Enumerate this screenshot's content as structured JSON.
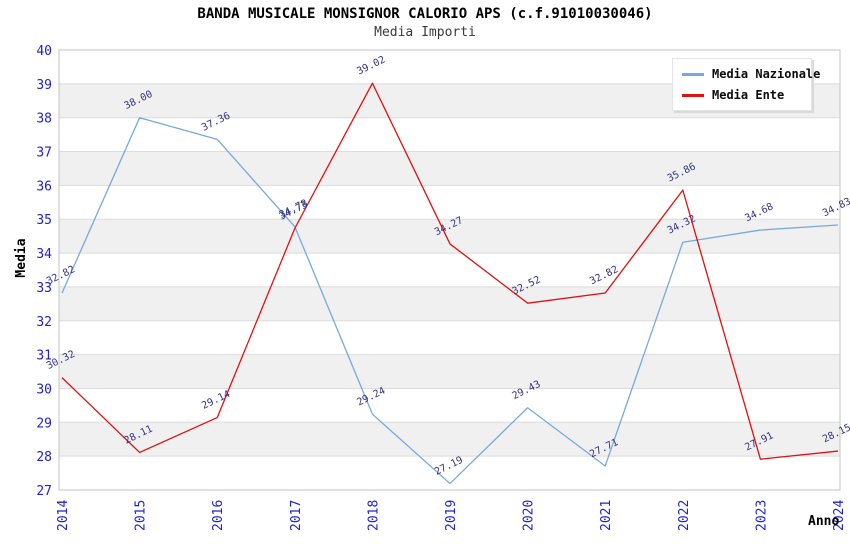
{
  "chart_data": {
    "type": "line",
    "title": "BANDA MUSICALE MONSIGNOR CALORIO APS (c.f.91010030046)",
    "subtitle": "Media Importi",
    "xlabel": "Anno",
    "ylabel": "Media",
    "categories": [
      "2014",
      "2015",
      "2016",
      "2017",
      "2018",
      "2019",
      "2020",
      "2021",
      "2022",
      "2023",
      "2024"
    ],
    "series": [
      {
        "name": "Media Nazionale",
        "color": "#76aade",
        "values": [
          32.82,
          38.0,
          37.36,
          34.78,
          29.24,
          27.19,
          29.43,
          27.71,
          34.32,
          34.68,
          34.83
        ]
      },
      {
        "name": "Media Ente",
        "color": "#e01010",
        "values": [
          30.32,
          28.11,
          29.14,
          34.73,
          39.02,
          34.27,
          32.52,
          32.82,
          35.86,
          27.91,
          28.15
        ]
      }
    ],
    "ylim": [
      27,
      40
    ],
    "y_ticks": [
      27,
      28,
      29,
      30,
      31,
      32,
      33,
      34,
      35,
      36,
      37,
      38,
      39,
      40
    ],
    "grid": true,
    "banded_background": true,
    "legend_position": "top-right",
    "colors": {
      "tick_label": "#2222cc",
      "data_label": "#333380",
      "band_gray": "#f0f0f0",
      "band_white": "#ffffff",
      "gridline": "#dcdcdc",
      "plot_border": "#c3c3c3"
    }
  }
}
